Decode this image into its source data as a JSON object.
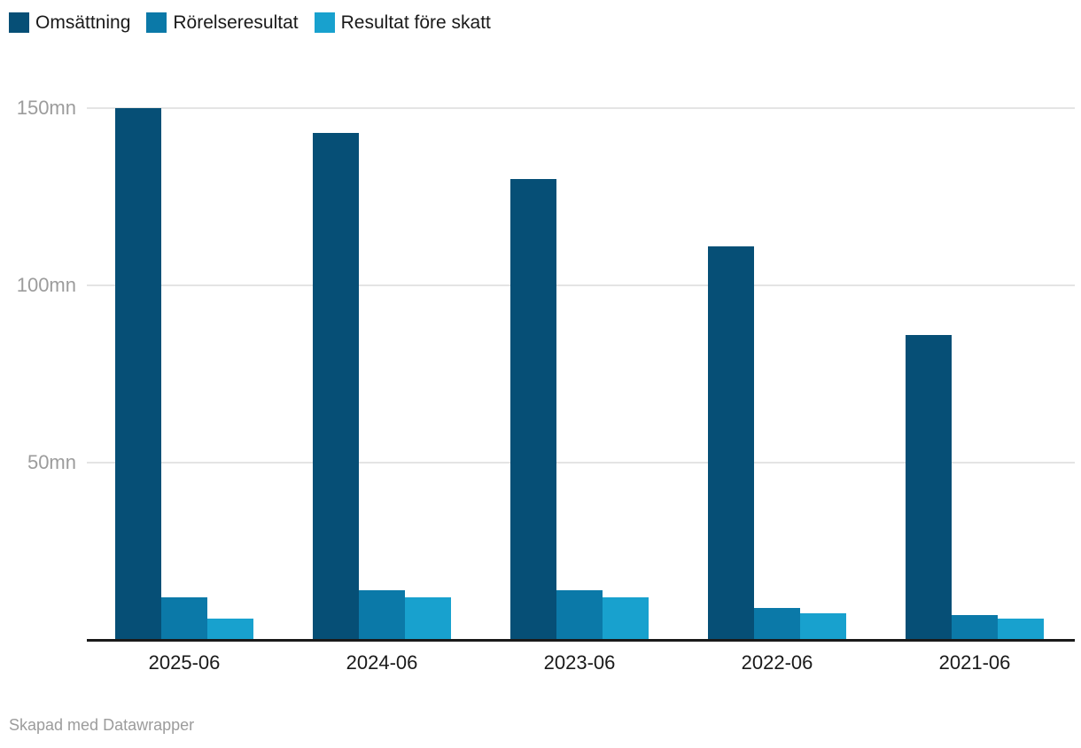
{
  "legend": {
    "items": [
      {
        "label": "Omsättning",
        "color": "#064f76"
      },
      {
        "label": "Rörelseresultat",
        "color": "#0b79a8"
      },
      {
        "label": "Resultat före skatt",
        "color": "#18a1ce"
      }
    ]
  },
  "footer": {
    "credit": "Skapad med Datawrapper"
  },
  "chart_data": {
    "type": "bar",
    "title": "",
    "xlabel": "",
    "ylabel": "",
    "unit": "mn",
    "categories": [
      "2025-06",
      "2024-06",
      "2023-06",
      "2022-06",
      "2021-06"
    ],
    "series": [
      {
        "name": "Omsättning",
        "color": "#064f76",
        "values": [
          150,
          143,
          130,
          111,
          86
        ]
      },
      {
        "name": "Rörelseresultat",
        "color": "#0b79a8",
        "values": [
          12,
          14,
          14,
          9,
          7
        ]
      },
      {
        "name": "Resultat före skatt",
        "color": "#18a1ce",
        "values": [
          6,
          12,
          12,
          7.5,
          6
        ]
      }
    ],
    "y_ticks": [
      {
        "value": 150,
        "label": "150mn"
      },
      {
        "value": 100,
        "label": "100mn"
      },
      {
        "value": 50,
        "label": "50mn"
      }
    ],
    "ylim": [
      0,
      150
    ],
    "grid": true,
    "legend_position": "top-left"
  }
}
